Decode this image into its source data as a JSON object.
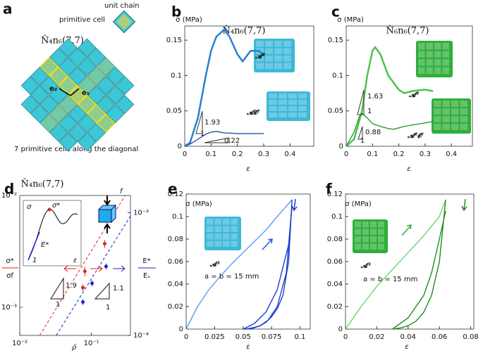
{
  "panel_a": {
    "panel": "a",
    "unit_chain": "unit chain",
    "primitive_cell": "primitive cell",
    "title": "N̂₄n₆(7,7)",
    "e2": "e₂",
    "e1": "e₁",
    "caption": "7 primitive cells along the diagonal"
  },
  "chart_data": [
    {
      "type": "line",
      "panel": "b",
      "title": "N̂₄n₆(7,7)",
      "ylabel": "σ (MPa)",
      "xlabel": "ε",
      "xlim": [
        0,
        0.49
      ],
      "ylim": [
        0,
        0.17
      ],
      "xticks": [
        0,
        0.1,
        0.2,
        0.3,
        0.4
      ],
      "yticks": [
        0,
        0.05,
        0.1,
        0.15
      ],
      "series": [
        {
          "name": "𝓐²",
          "color": "#2a7fd4",
          "x": [
            0,
            0.02,
            0.05,
            0.08,
            0.1,
            0.12,
            0.15,
            0.17,
            0.2,
            0.22,
            0.25,
            0.28,
            0.3
          ],
          "values": [
            0,
            0.005,
            0.04,
            0.1,
            0.135,
            0.155,
            0.165,
            0.155,
            0.13,
            0.12,
            0.135,
            0.135,
            0.13
          ]
        },
        {
          "name": "𝓐𝓞",
          "color": "#1f5aa8",
          "x": [
            0,
            0.02,
            0.05,
            0.08,
            0.1,
            0.12,
            0.15,
            0.2,
            0.25,
            0.3
          ],
          "values": [
            0,
            0.003,
            0.01,
            0.017,
            0.02,
            0.021,
            0.019,
            0.018,
            0.018,
            0.018
          ]
        }
      ],
      "annotations": [
        "1.93",
        "1",
        "0.22"
      ],
      "image_color": "#3cb8d8"
    },
    {
      "type": "line",
      "panel": "c",
      "title": "N̂₆n₆(7,7)",
      "ylabel": "σ (MPa)",
      "xlabel": "ε",
      "xlim": [
        0,
        0.48
      ],
      "ylim": [
        0,
        0.17
      ],
      "xticks": [
        0,
        0.1,
        0.2,
        0.3,
        0.4
      ],
      "yticks": [
        0,
        0.05,
        0.1,
        0.15
      ],
      "series": [
        {
          "name": "𝓐³",
          "color": "#4cc24c",
          "x": [
            0,
            0.03,
            0.06,
            0.08,
            0.1,
            0.11,
            0.13,
            0.16,
            0.2,
            0.22,
            0.25,
            0.3,
            0.33
          ],
          "values": [
            0,
            0.01,
            0.05,
            0.1,
            0.135,
            0.14,
            0.13,
            0.1,
            0.08,
            0.075,
            0.078,
            0.08,
            0.078
          ]
        },
        {
          "name": "𝓐²𝓞",
          "color": "#2e9e2e",
          "x": [
            0,
            0.03,
            0.05,
            0.06,
            0.08,
            0.1,
            0.13,
            0.16,
            0.18,
            0.22,
            0.25,
            0.3,
            0.33
          ],
          "values": [
            0,
            0.02,
            0.042,
            0.047,
            0.04,
            0.032,
            0.028,
            0.025,
            0.024,
            0.028,
            0.03,
            0.033,
            0.035
          ]
        }
      ],
      "annotations": [
        "1.63",
        "1",
        "0.88",
        "1"
      ],
      "image_color": "#2fae3a"
    },
    {
      "type": "scatter",
      "panel": "d",
      "title": "N̂₄n₆(7,7)",
      "log": true,
      "ylabel": [
        "σ*",
        "σf"
      ],
      "y2label": [
        "E*",
        "Eₛ"
      ],
      "xlabel": "ρ̄",
      "xlim": [
        0.01,
        0.35
      ],
      "ylim": [
        0.00056,
        0.01
      ],
      "y2lim": [
        0.0001,
        0.00138
      ],
      "xticks": [
        {
          "value": 0.01,
          "label": "10⁻²"
        },
        {
          "value": 0.1,
          "label": "10⁻¹"
        }
      ],
      "yticks": [
        {
          "value": 0.001,
          "label": "10⁻³"
        },
        {
          "value": 0.01,
          "label": "10⁻²"
        }
      ],
      "y2ticks": [
        {
          "value": 0.0001,
          "label": "10⁻⁴"
        },
        {
          "value": 0.001,
          "label": "10⁻³"
        }
      ],
      "ycolor": "#e02020",
      "y2color": "#2020d0",
      "series": [
        {
          "color": "#e02020",
          "x": [
            0.076,
            0.081,
            0.153
          ],
          "values": [
            0.0015,
            0.0021,
            0.0037
          ],
          "errors": [
            0.0001,
            0.0002,
            0.0003
          ]
        },
        {
          "color": "#2020d0",
          "axis": "y2",
          "x": [
            0.076,
            0.102,
            0.16
          ],
          "values": [
            0.000187,
            0.000266,
            0.000365
          ],
          "errors": [
            1e-05,
            1.5e-05,
            2e-05
          ]
        }
      ],
      "fits": [
        {
          "color": "#e02020",
          "x": [
            0.019,
            0.295
          ],
          "values": [
            0.00056,
            0.01
          ]
        },
        {
          "color": "#2020d0",
          "axis": "y2",
          "x": [
            0.0323,
            0.35
          ],
          "values": [
            0.0001,
            0.00094
          ]
        }
      ],
      "annotations": [
        "1.9",
        "1",
        "1.1",
        "1"
      ],
      "inset": [
        "σ",
        "σ*",
        "E*",
        "1",
        "ε"
      ],
      "force_label": "f"
    },
    {
      "type": "line",
      "panel": "e",
      "ylabel": "σ (MPa)",
      "xlabel": "ε",
      "xlim": [
        0,
        0.109
      ],
      "ylim": [
        0,
        0.12
      ],
      "xticks": [
        0,
        0.025,
        0.05,
        0.075,
        0.1
      ],
      "yticks": [
        0,
        0.02,
        0.04,
        0.06,
        0.08,
        0.1,
        0.12
      ],
      "series": [
        {
          "color": "#5b9bf0",
          "x": [
            0,
            0.01,
            0.02,
            0.03,
            0.04,
            0.05,
            0.06,
            0.07,
            0.08,
            0.093
          ],
          "values": [
            0,
            0.02,
            0.035,
            0.047,
            0.058,
            0.068,
            0.078,
            0.088,
            0.1,
            0.115
          ]
        },
        {
          "color": "#1c3fd0",
          "x": [
            0.093,
            0.09,
            0.085,
            0.08,
            0.075,
            0.07,
            0.065,
            0.06,
            0.055,
            0.05
          ],
          "values": [
            0.115,
            0.06,
            0.03,
            0.018,
            0.011,
            0.006,
            0.003,
            0.0015,
            0.0005,
            0
          ]
        },
        {
          "color": "#1c3fd0",
          "x": [
            0.05,
            0.06,
            0.07,
            0.08,
            0.09,
            0.093
          ],
          "values": [
            0,
            0.005,
            0.015,
            0.035,
            0.075,
            0.11
          ]
        },
        {
          "color": "#1c3fd0",
          "x": [
            0.093,
            0.088,
            0.08,
            0.072,
            0.065,
            0.058,
            0.055
          ],
          "values": [
            0.11,
            0.05,
            0.02,
            0.008,
            0.003,
            0.0005,
            0
          ]
        }
      ],
      "annotations": [
        "𝓐²",
        "a = b = 15 mm"
      ],
      "image_color": "#3cb8d8"
    },
    {
      "type": "line",
      "panel": "f",
      "ylabel": "σ (MPa)",
      "xlabel": "ε",
      "xlim": [
        0,
        0.082
      ],
      "ylim": [
        0,
        0.12
      ],
      "xticks": [
        0,
        0.02,
        0.04,
        0.06,
        0.08
      ],
      "yticks": [
        0,
        0.02,
        0.04,
        0.06,
        0.08,
        0.1,
        0.12
      ],
      "series": [
        {
          "color": "#6fd46f",
          "x": [
            0,
            0.01,
            0.02,
            0.03,
            0.04,
            0.05,
            0.06,
            0.064
          ],
          "values": [
            0,
            0.02,
            0.038,
            0.053,
            0.068,
            0.083,
            0.1,
            0.115
          ]
        },
        {
          "color": "#1e8f1e",
          "x": [
            0.064,
            0.06,
            0.055,
            0.05,
            0.045,
            0.04,
            0.035,
            0.03
          ],
          "values": [
            0.115,
            0.06,
            0.03,
            0.015,
            0.007,
            0.003,
            0.001,
            0
          ]
        },
        {
          "color": "#1e8f1e",
          "x": [
            0.03,
            0.04,
            0.05,
            0.055,
            0.06,
            0.064
          ],
          "values": [
            0,
            0.01,
            0.03,
            0.05,
            0.08,
            0.105
          ]
        }
      ],
      "annotations": [
        "𝓐³",
        "a = b = 15 mm"
      ],
      "image_color": "#2fae3a"
    }
  ]
}
